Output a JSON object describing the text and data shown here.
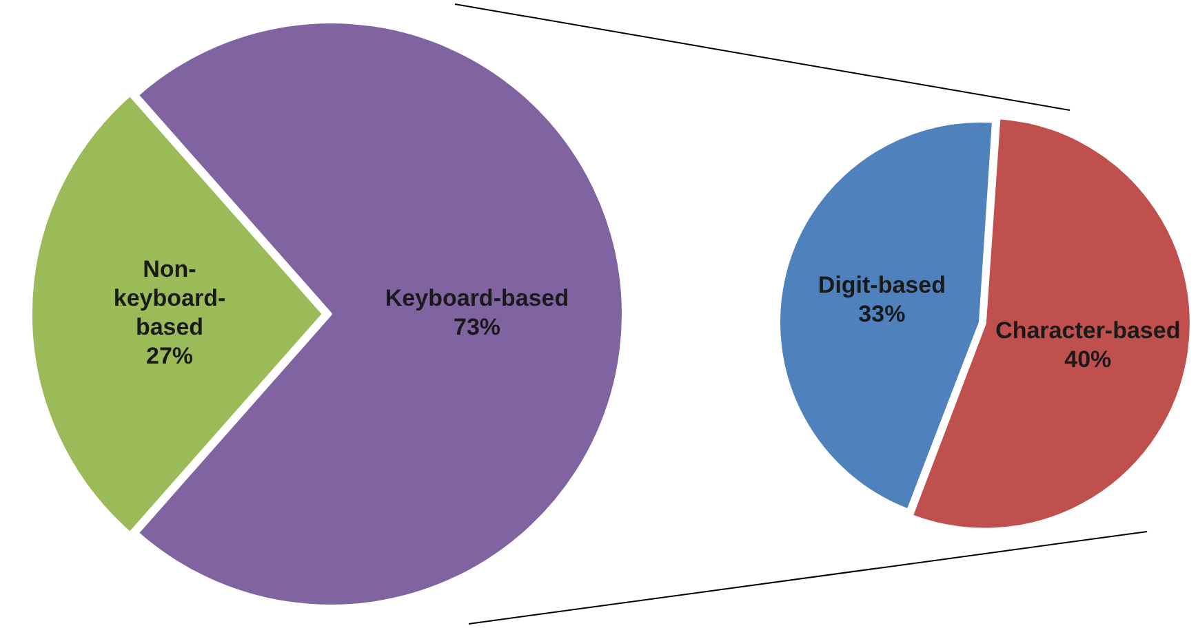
{
  "chart_data": [
    {
      "type": "pie",
      "categories": [
        "Non-keyboard-based",
        "Keyboard-based"
      ],
      "values": [
        27,
        73
      ],
      "colors": [
        "#9bbb59",
        "#8064a2"
      ],
      "value_labels": [
        "27%",
        "73%"
      ],
      "legend": false
    },
    {
      "type": "pie",
      "categories": [
        "Digit-based",
        "Character-based"
      ],
      "values": [
        33,
        40
      ],
      "colors": [
        "#4f81bd",
        "#c0504d"
      ],
      "value_labels": [
        "33%",
        "40%"
      ],
      "legend": false
    }
  ]
}
